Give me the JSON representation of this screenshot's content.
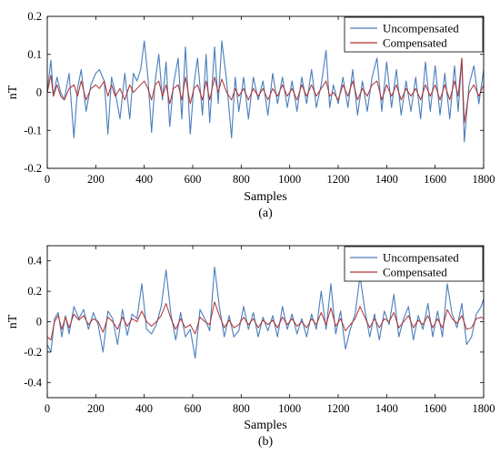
{
  "chart_data": [
    {
      "type": "line",
      "caption": "(a)",
      "xlabel": "Samples",
      "ylabel": "nT",
      "xlim": [
        0,
        1800
      ],
      "ylim": [
        -0.2,
        0.2
      ],
      "xticks": [
        0,
        200,
        400,
        600,
        800,
        1000,
        1200,
        1400,
        1600,
        1800
      ],
      "yticks": [
        -0.2,
        -0.1,
        0,
        0.1,
        0.2
      ],
      "ytick_labels": [
        "-0.2",
        "-0.1",
        "0",
        "0.1",
        "0.2"
      ],
      "grid": false,
      "legend_position": "top-right",
      "x": [
        0,
        15,
        25,
        40,
        55,
        70,
        90,
        110,
        125,
        140,
        160,
        180,
        200,
        215,
        235,
        250,
        265,
        280,
        300,
        320,
        340,
        355,
        370,
        385,
        400,
        415,
        430,
        445,
        460,
        475,
        490,
        505,
        520,
        540,
        555,
        570,
        590,
        605,
        620,
        640,
        655,
        670,
        690,
        705,
        720,
        740,
        760,
        775,
        790,
        810,
        830,
        850,
        870,
        890,
        910,
        930,
        950,
        970,
        990,
        1010,
        1030,
        1050,
        1070,
        1090,
        1110,
        1130,
        1150,
        1165,
        1180,
        1200,
        1220,
        1240,
        1260,
        1280,
        1300,
        1320,
        1340,
        1360,
        1380,
        1400,
        1420,
        1440,
        1460,
        1480,
        1500,
        1520,
        1540,
        1560,
        1580,
        1600,
        1620,
        1640,
        1660,
        1680,
        1695,
        1710,
        1720,
        1740,
        1760,
        1780,
        1800
      ],
      "series": [
        {
          "name": "Uncompensated",
          "color": "#4a7ebb",
          "values": [
            0.0,
            0.085,
            -0.01,
            0.04,
            0.0,
            -0.02,
            0.05,
            -0.12,
            0.01,
            0.06,
            -0.05,
            0.02,
            0.05,
            0.06,
            0.03,
            -0.11,
            0.04,
            0.0,
            -0.07,
            0.05,
            -0.07,
            0.05,
            0.03,
            0.06,
            0.135,
            0.04,
            -0.105,
            0.03,
            0.1,
            -0.02,
            0.08,
            -0.09,
            0.02,
            0.09,
            -0.07,
            0.12,
            -0.11,
            0.02,
            0.09,
            -0.06,
            0.1,
            -0.08,
            0.12,
            -0.03,
            0.135,
            0.03,
            -0.12,
            0.04,
            -0.05,
            0.04,
            -0.07,
            0.04,
            -0.02,
            0.03,
            -0.06,
            0.05,
            -0.03,
            0.04,
            -0.04,
            0.03,
            -0.05,
            0.04,
            -0.03,
            0.06,
            -0.04,
            0.02,
            0.11,
            -0.04,
            0.02,
            -0.03,
            0.04,
            -0.04,
            0.06,
            -0.06,
            0.03,
            -0.05,
            0.04,
            0.09,
            -0.05,
            0.08,
            -0.04,
            0.06,
            -0.06,
            0.03,
            -0.05,
            0.04,
            -0.07,
            0.08,
            -0.05,
            0.07,
            -0.06,
            0.05,
            -0.07,
            0.07,
            -0.05,
            0.09,
            -0.13,
            0.02,
            0.07,
            -0.03,
            0.06
          ]
        },
        {
          "name": "Compensated",
          "color": "#b03030",
          "values": [
            0.0,
            0.045,
            -0.01,
            0.02,
            -0.01,
            -0.02,
            0.01,
            0.02,
            -0.01,
            0.03,
            -0.02,
            0.01,
            0.02,
            0.01,
            0.03,
            -0.01,
            0.02,
            -0.01,
            0.01,
            -0.02,
            0.02,
            0.0,
            0.01,
            0.02,
            0.03,
            0.01,
            -0.02,
            0.02,
            0.03,
            -0.01,
            0.02,
            -0.03,
            0.01,
            0.02,
            -0.02,
            0.04,
            -0.03,
            0.01,
            0.02,
            -0.02,
            0.03,
            -0.02,
            0.04,
            0.0,
            0.035,
            0.0,
            -0.02,
            0.01,
            -0.01,
            0.01,
            -0.02,
            0.01,
            -0.01,
            0.01,
            -0.02,
            0.01,
            -0.01,
            0.02,
            -0.01,
            0.01,
            -0.02,
            0.02,
            -0.01,
            0.02,
            -0.01,
            0.01,
            0.03,
            -0.01,
            0.0,
            -0.02,
            0.02,
            -0.01,
            0.03,
            -0.02,
            0.01,
            -0.01,
            0.02,
            0.03,
            -0.02,
            0.02,
            -0.01,
            0.02,
            -0.02,
            0.01,
            -0.01,
            0.01,
            -0.02,
            0.02,
            -0.01,
            0.02,
            -0.02,
            0.02,
            -0.02,
            0.03,
            -0.01,
            0.09,
            -0.08,
            0.0,
            0.02,
            -0.01,
            0.02
          ]
        }
      ]
    },
    {
      "type": "line",
      "caption": "(b)",
      "xlabel": "Samples",
      "ylabel": "nT",
      "xlim": [
        0,
        1800
      ],
      "ylim": [
        -0.5,
        0.5
      ],
      "xticks": [
        0,
        200,
        400,
        600,
        800,
        1000,
        1200,
        1400,
        1600,
        1800
      ],
      "yticks": [
        -0.4,
        -0.2,
        0,
        0.2,
        0.4
      ],
      "ytick_labels": [
        "-0.4",
        "-0.2",
        "0",
        "0.2",
        "0.4"
      ],
      "grid": false,
      "legend_position": "top-right",
      "x": [
        0,
        15,
        30,
        45,
        60,
        75,
        90,
        110,
        130,
        150,
        170,
        190,
        210,
        230,
        250,
        270,
        290,
        310,
        330,
        350,
        370,
        390,
        410,
        430,
        450,
        470,
        490,
        510,
        530,
        550,
        570,
        590,
        610,
        630,
        650,
        670,
        690,
        710,
        730,
        750,
        770,
        790,
        810,
        830,
        850,
        870,
        890,
        910,
        930,
        950,
        970,
        990,
        1010,
        1030,
        1050,
        1070,
        1090,
        1110,
        1130,
        1150,
        1170,
        1190,
        1210,
        1230,
        1250,
        1270,
        1290,
        1310,
        1330,
        1350,
        1370,
        1390,
        1410,
        1430,
        1450,
        1470,
        1490,
        1510,
        1530,
        1550,
        1570,
        1590,
        1610,
        1630,
        1650,
        1670,
        1690,
        1710,
        1730,
        1750,
        1770,
        1790,
        1800
      ],
      "series": [
        {
          "name": "Uncompensated",
          "color": "#4a7ebb",
          "values": [
            -0.15,
            -0.2,
            0.02,
            0.06,
            -0.1,
            0.04,
            -0.08,
            0.1,
            0.02,
            0.08,
            -0.05,
            0.06,
            -0.02,
            -0.2,
            0.07,
            0.02,
            -0.15,
            0.08,
            -0.09,
            0.05,
            0.02,
            0.25,
            -0.05,
            -0.08,
            -0.02,
            0.1,
            0.34,
            0.05,
            -0.12,
            0.06,
            -0.1,
            -0.05,
            -0.24,
            0.08,
            0.02,
            -0.06,
            0.36,
            0.1,
            -0.1,
            0.04,
            -0.1,
            -0.06,
            0.1,
            -0.05,
            0.06,
            -0.1,
            0.03,
            -0.06,
            0.04,
            -0.1,
            0.1,
            -0.05,
            0.05,
            -0.08,
            0.02,
            -0.1,
            0.05,
            -0.05,
            0.2,
            -0.05,
            0.25,
            -0.08,
            0.07,
            -0.18,
            -0.05,
            0.05,
            0.3,
            0.08,
            -0.1,
            0.05,
            -0.12,
            0.07,
            -0.02,
            0.18,
            -0.1,
            0.02,
            0.1,
            -0.12,
            0.04,
            -0.05,
            0.12,
            -0.1,
            0.07,
            -0.1,
            0.25,
            0.05,
            -0.04,
            0.12,
            -0.15,
            -0.1,
            0.05,
            0.1,
            0.15
          ]
        },
        {
          "name": "Compensated",
          "color": "#b03030",
          "values": [
            -0.1,
            -0.12,
            0.0,
            0.04,
            -0.05,
            0.03,
            -0.04,
            0.05,
            0.01,
            0.04,
            -0.02,
            0.02,
            0.0,
            -0.07,
            0.03,
            0.0,
            -0.05,
            0.03,
            -0.03,
            0.02,
            0.0,
            0.07,
            0.0,
            -0.03,
            0.0,
            0.04,
            0.12,
            0.02,
            -0.05,
            0.02,
            -0.04,
            -0.02,
            -0.08,
            0.03,
            0.0,
            -0.02,
            0.13,
            0.04,
            -0.04,
            0.01,
            -0.04,
            -0.02,
            0.03,
            -0.02,
            0.02,
            -0.04,
            0.01,
            -0.02,
            0.01,
            -0.04,
            0.03,
            -0.02,
            0.02,
            -0.03,
            0.0,
            -0.04,
            0.02,
            -0.02,
            0.06,
            -0.02,
            0.09,
            -0.03,
            0.02,
            -0.06,
            -0.02,
            0.02,
            0.1,
            0.03,
            -0.04,
            0.02,
            -0.04,
            0.02,
            0.0,
            0.06,
            -0.04,
            0.0,
            0.04,
            -0.04,
            0.01,
            -0.02,
            0.04,
            -0.04,
            0.02,
            -0.04,
            0.08,
            0.02,
            -0.01,
            0.04,
            -0.05,
            -0.04,
            0.02,
            0.03,
            0.02
          ]
        }
      ]
    }
  ]
}
